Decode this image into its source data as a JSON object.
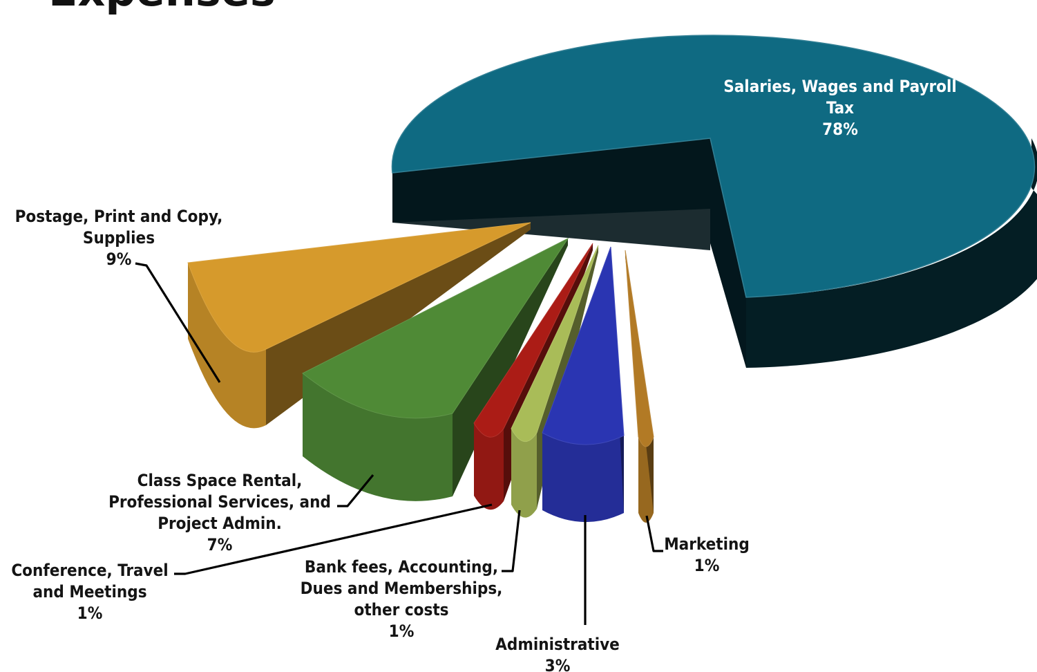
{
  "chart_data": {
    "type": "pie",
    "title": "Expenses",
    "three_d": true,
    "exploded": true,
    "legend": "none",
    "slices": [
      {
        "label": "Salaries, Wages and Payroll Tax",
        "value": 78,
        "value_label": "78%",
        "color": "#0f6a82"
      },
      {
        "label": "Postage, Print and Copy, Supplies",
        "value": 9,
        "value_label": "9%",
        "color": "#d69a2c"
      },
      {
        "label": "Class Space Rental, Professional Services, and Project Admin.",
        "value": 7,
        "value_label": "7%",
        "color": "#4f8a36"
      },
      {
        "label": "Conference, Travel and Meetings",
        "value": 1,
        "value_label": "1%",
        "color": "#ab1c16"
      },
      {
        "label": "Bank fees, Accounting, Dues and Memberships, other costs",
        "value": 1,
        "value_label": "1%",
        "color": "#a9bc58"
      },
      {
        "label": "Administrative",
        "value": 3,
        "value_label": "3%",
        "color": "#2a35b2"
      },
      {
        "label": "Marketing",
        "value": 1,
        "value_label": "1%",
        "color": "#b27a25"
      }
    ]
  }
}
